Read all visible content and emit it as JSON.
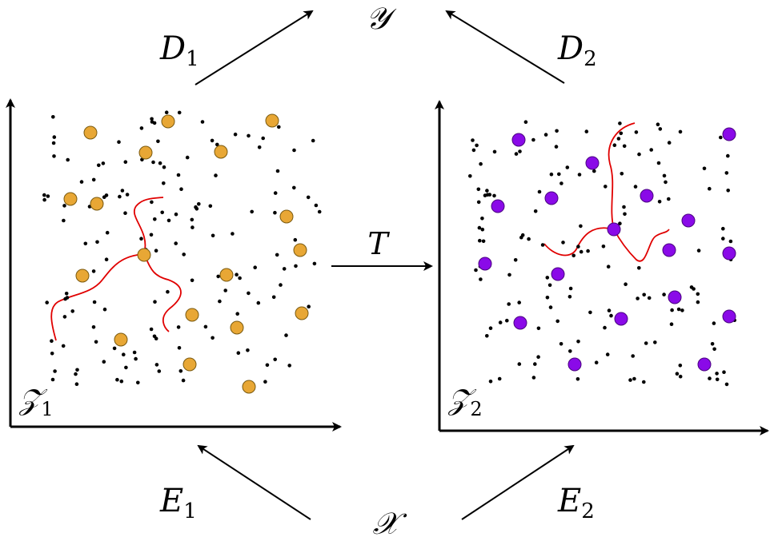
{
  "labels": {
    "output_space": "𝒴",
    "input_space": "𝒳",
    "d1_main": "D",
    "d1_sub": "1",
    "d2_main": "D",
    "d2_sub": "2",
    "e1_main": "E",
    "e1_sub": "1",
    "e2_main": "E",
    "e2_sub": "2",
    "transfer": "T",
    "z1_main": "𝒵",
    "z1_sub": "1",
    "z2_main": "𝒵",
    "z2_sub": "2"
  },
  "colors": {
    "latent1_points": "#E8A735",
    "latent2_points": "#8A0AE8",
    "path_curve": "#E00000",
    "ink": "#000000"
  }
}
